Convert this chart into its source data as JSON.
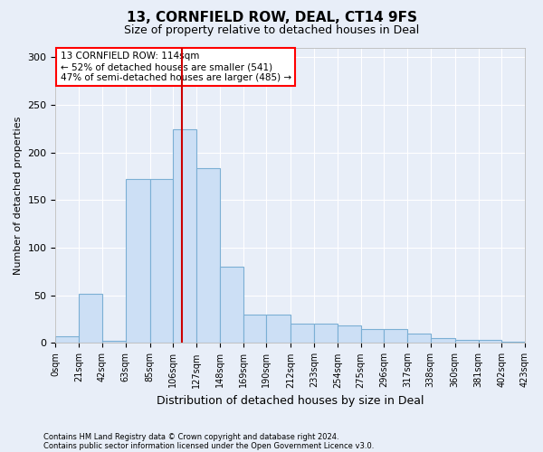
{
  "title1": "13, CORNFIELD ROW, DEAL, CT14 9FS",
  "title2": "Size of property relative to detached houses in Deal",
  "xlabel": "Distribution of detached houses by size in Deal",
  "ylabel": "Number of detached properties",
  "footnote1": "Contains HM Land Registry data © Crown copyright and database right 2024.",
  "footnote2": "Contains public sector information licensed under the Open Government Licence v3.0.",
  "annotation_line1": "13 CORNFIELD ROW: 114sqm",
  "annotation_line2": "← 52% of detached houses are smaller (541)",
  "annotation_line3": "47% of semi-detached houses are larger (485) →",
  "bar_color": "#ccdff5",
  "bar_edge_color": "#7bafd4",
  "vline_color": "#cc0000",
  "vline_x": 114,
  "bin_edges": [
    0,
    21,
    42,
    63,
    85,
    106,
    127,
    148,
    169,
    190,
    212,
    233,
    254,
    275,
    296,
    317,
    338,
    360,
    381,
    402,
    423
  ],
  "bin_labels": [
    "0sqm",
    "21sqm",
    "42sqm",
    "63sqm",
    "85sqm",
    "106sqm",
    "127sqm",
    "148sqm",
    "169sqm",
    "190sqm",
    "212sqm",
    "233sqm",
    "254sqm",
    "275sqm",
    "296sqm",
    "317sqm",
    "338sqm",
    "360sqm",
    "381sqm",
    "402sqm",
    "423sqm"
  ],
  "bar_heights": [
    7,
    52,
    2,
    172,
    172,
    224,
    183,
    80,
    30,
    30,
    20,
    20,
    18,
    15,
    15,
    10,
    5,
    3,
    3,
    1
  ],
  "ylim": [
    0,
    310
  ],
  "yticks": [
    0,
    50,
    100,
    150,
    200,
    250,
    300
  ],
  "bg_color": "#e8eef8",
  "axes_bg": "#e8eef8"
}
